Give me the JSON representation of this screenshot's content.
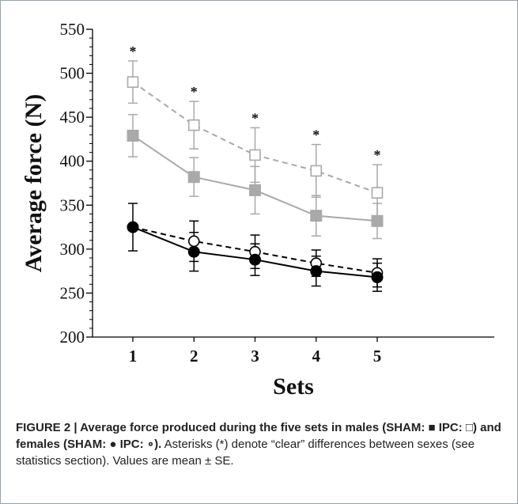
{
  "chart_data": {
    "type": "line",
    "xlabel": "Sets",
    "ylabel": "Average force (N)",
    "categories": [
      "1",
      "2",
      "3",
      "4",
      "5"
    ],
    "ylim": [
      200,
      550
    ],
    "yticks": [
      "200",
      "250",
      "300",
      "350",
      "400",
      "450",
      "500",
      "550"
    ],
    "grid": false,
    "series": [
      {
        "key": "male_ipc",
        "marker": "open-square",
        "line": "dashed",
        "color": "#a9a9a9",
        "values": [
          490,
          441,
          407,
          389,
          364
        ],
        "errors": [
          24,
          27,
          31,
          30,
          32
        ]
      },
      {
        "key": "male_sham",
        "marker": "filled-square",
        "line": "solid",
        "color": "#a9a9a9",
        "values": [
          429,
          382,
          367,
          338,
          332
        ],
        "errors": [
          24,
          22,
          27,
          23,
          20
        ]
      },
      {
        "key": "female_ipc",
        "marker": "open-circle",
        "line": "dashed",
        "color": "#000000",
        "values": [
          325,
          309,
          297,
          284,
          273
        ],
        "errors": [
          0,
          23,
          19,
          15,
          16
        ]
      },
      {
        "key": "female_sham",
        "marker": "filled-circle",
        "line": "solid",
        "color": "#000000",
        "values": [
          325,
          297,
          288,
          275,
          268
        ],
        "errors": [
          27,
          22,
          18,
          17,
          16
        ]
      }
    ],
    "annotations": {
      "asterisks": [
        "*",
        "*",
        "*",
        "*",
        "*"
      ]
    }
  },
  "caption": {
    "figure_label": "FIGURE 2 | Average force produced during the five sets in males (SHAM: ■ IPC: □) and females (SHAM: ● IPC: ∘).",
    "description": "Asterisks (*) denote “clear” differences between sexes (see statistics section). Values are mean ± SE."
  }
}
